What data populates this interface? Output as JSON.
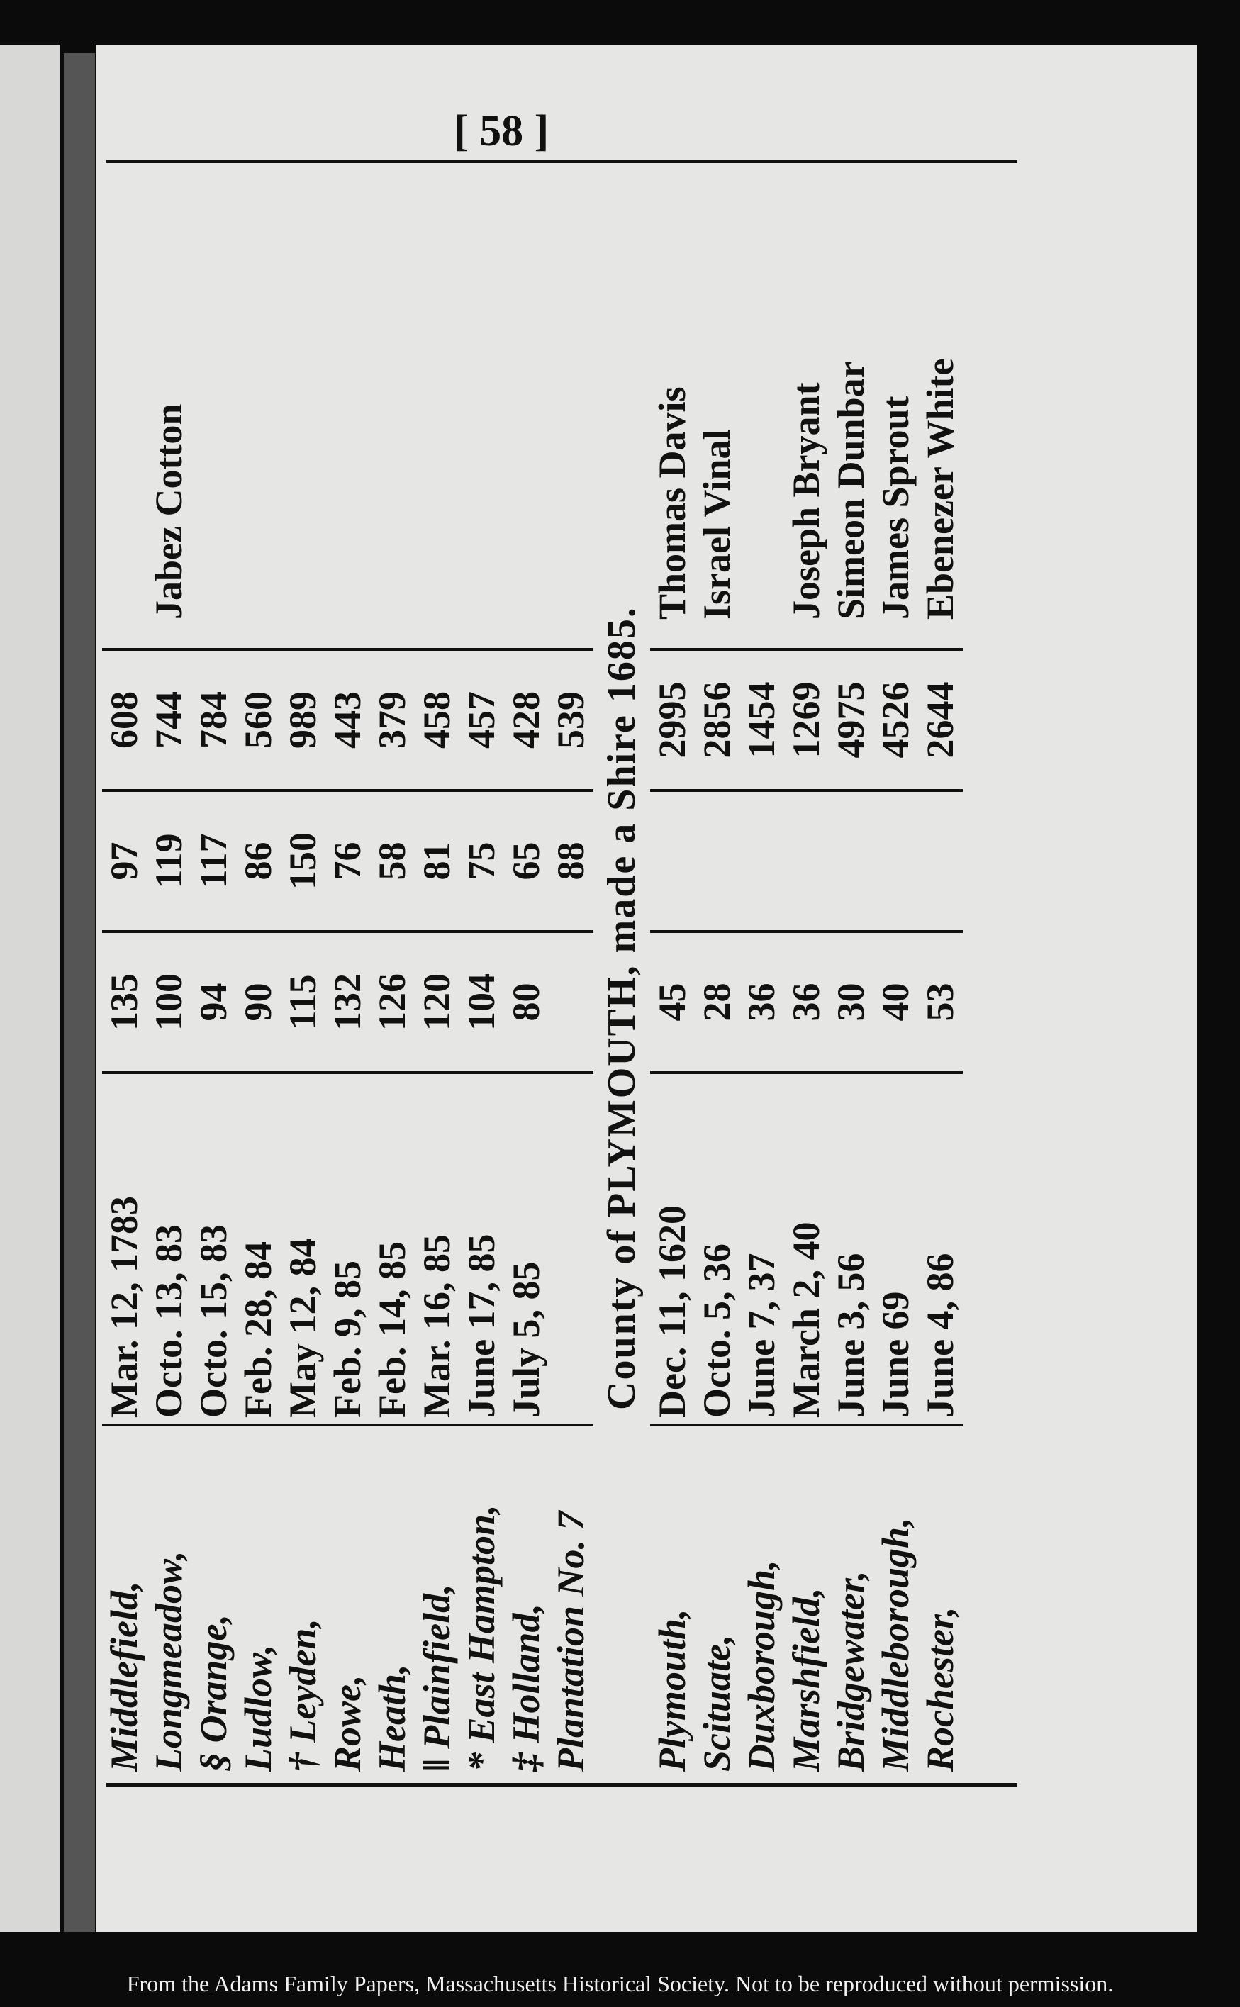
{
  "header": {
    "page_number": "[ 58 ]"
  },
  "table": {
    "rows": [
      {
        "town": "Middlefield,",
        "incorporated": "Mar. 12, 1783",
        "a": 135,
        "b": 97,
        "c": 608
      },
      {
        "town": "Longmeadow,",
        "incorporated": "Octo. 13, 83",
        "a": 100,
        "b": 119,
        "c": 744,
        "rep": "Jabez Cotton"
      },
      {
        "town": "§ Orange,",
        "incorporated": "Octo. 15, 83",
        "a": 94,
        "b": 117,
        "c": 784
      },
      {
        "town": "Ludlow,",
        "incorporated": "Feb. 28, 84",
        "a": 90,
        "b": 86,
        "c": 560
      },
      {
        "town": "† Leyden,",
        "incorporated": "May 12, 84",
        "a": 115,
        "b": 150,
        "c": 989
      },
      {
        "town": "Rowe,",
        "incorporated": "Feb. 9, 85",
        "a": 132,
        "b": 76,
        "c": 443
      },
      {
        "town": "Heath,",
        "incorporated": "Feb. 14, 85",
        "a": 126,
        "b": 58,
        "c": 379
      },
      {
        "town": "‖ Plainfield,",
        "incorporated": "Mar. 16, 85",
        "a": 120,
        "b": 81,
        "c": 458
      },
      {
        "town": "* East Hampton,",
        "incorporated": "June 17, 85",
        "a": 104,
        "b": 75,
        "c": 457
      },
      {
        "town": "‡ Holland,",
        "incorporated": "July 5, 85",
        "a": 80,
        "b": 65,
        "c": 428
      },
      {
        "town": "Plantation No. 7",
        "b": 88,
        "c": 539
      }
    ]
  },
  "county_heading": "County of PLYMOUTH, made a Shire 1685.",
  "table2": {
    "rows": [
      {
        "town": "Plymouth,",
        "incorporated": "Dec. 11, 1620",
        "a": 45,
        "c": 2995,
        "rep": "Thomas Davis"
      },
      {
        "town": "Scituate,",
        "incorporated": "Octo. 5, 36",
        "a": 28,
        "c": 2856,
        "rep": "Israel Vinal"
      },
      {
        "town": "Duxborough,",
        "incorporated": "June 7, 37",
        "a": 36,
        "c": 1454
      },
      {
        "town": "Marshfield,",
        "incorporated": "March 2, 40",
        "a": 36,
        "c": 1269,
        "rep": "Joseph Bryant"
      },
      {
        "town": "Bridgewater,",
        "incorporated": "June 3, 56",
        "a": 30,
        "c": 4975,
        "rep": "Simeon Dunbar"
      },
      {
        "town": "Middleborough,",
        "incorporated": "June 69",
        "a": 40,
        "c": 4526,
        "rep": "James Sprout"
      },
      {
        "town": "Rochester,",
        "incorporated": "June 4, 86",
        "a": 53,
        "c": 2644,
        "rep": "Ebenezer White"
      }
    ]
  },
  "footer": "From the Adams Family Papers, Massachusetts Historical Society. Not to be reproduced without permission."
}
